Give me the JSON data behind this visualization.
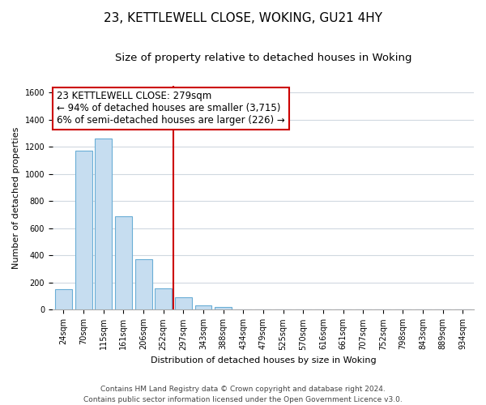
{
  "title": "23, KETTLEWELL CLOSE, WOKING, GU21 4HY",
  "subtitle": "Size of property relative to detached houses in Woking",
  "xlabel": "Distribution of detached houses by size in Woking",
  "ylabel": "Number of detached properties",
  "bar_color": "#c6ddf0",
  "bar_edge_color": "#6aaed6",
  "annotation_box_edge": "#cc0000",
  "vline_color": "#cc0000",
  "background_color": "#ffffff",
  "grid_color": "#d0d8e0",
  "bin_labels": [
    "24sqm",
    "70sqm",
    "115sqm",
    "161sqm",
    "206sqm",
    "252sqm",
    "297sqm",
    "343sqm",
    "388sqm",
    "434sqm",
    "479sqm",
    "525sqm",
    "570sqm",
    "616sqm",
    "661sqm",
    "707sqm",
    "752sqm",
    "798sqm",
    "843sqm",
    "889sqm",
    "934sqm"
  ],
  "bar_heights": [
    150,
    1170,
    1260,
    685,
    370,
    160,
    95,
    35,
    22,
    0,
    0,
    0,
    0,
    0,
    0,
    0,
    0,
    0,
    0,
    0,
    0
  ],
  "annotation_line1": "23 KETTLEWELL CLOSE: 279sqm",
  "annotation_line2": "← 94% of detached houses are smaller (3,715)",
  "annotation_line3": "6% of semi-detached houses are larger (226) →",
  "ylim": [
    0,
    1650
  ],
  "footer_line1": "Contains HM Land Registry data © Crown copyright and database right 2024.",
  "footer_line2": "Contains public sector information licensed under the Open Government Licence v3.0.",
  "title_fontsize": 11,
  "subtitle_fontsize": 9.5,
  "axis_label_fontsize": 8,
  "tick_fontsize": 7,
  "footer_fontsize": 6.5,
  "annotation_fontsize": 8.5
}
